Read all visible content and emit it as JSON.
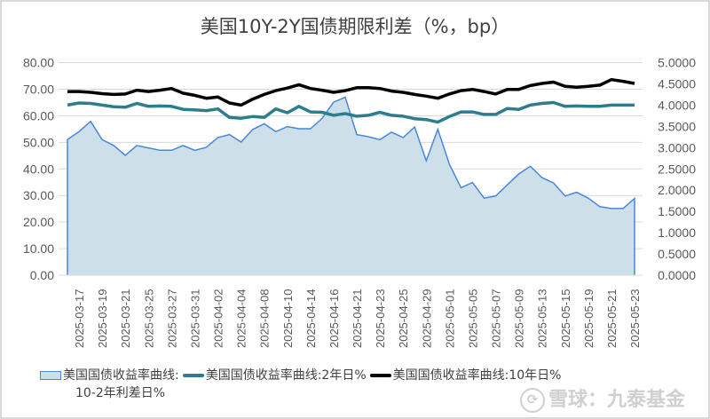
{
  "chart_data": {
    "type": "area+line",
    "title": "美国10Y-2Y国债期限利差（%，bp）",
    "tick_labels": [
      "2025-03-17",
      "2025-03-19",
      "2025-03-21",
      "2025-03-25",
      "2025-03-27",
      "2025-03-31",
      "2025-04-02",
      "2025-04-04",
      "2025-04-08",
      "2025-04-10",
      "2025-04-14",
      "2025-04-16",
      "2025-04-21",
      "2025-04-23",
      "2025-04-25",
      "2025-04-29",
      "2025-05-01",
      "2025-05-05",
      "2025-05-07",
      "2025-05-09",
      "2025-05-13",
      "2025-05-15",
      "2025-05-19",
      "2025-05-21",
      "2025-05-23"
    ],
    "y_left": {
      "min": 0,
      "max": 80,
      "step": 10,
      "ticks": [
        "0.00",
        "10.00",
        "20.00",
        "30.00",
        "40.00",
        "50.00",
        "60.00",
        "70.00",
        "80.00"
      ]
    },
    "y_right": {
      "min": 0,
      "max": 5,
      "step": 0.5,
      "ticks": [
        "0.0000",
        "0.5000",
        "1.0000",
        "1.5000",
        "2.0000",
        "2.5000",
        "3.0000",
        "3.5000",
        "4.0000",
        "4.5000",
        "5.0000"
      ]
    },
    "grid": true,
    "legend_position": "bottom",
    "series": [
      {
        "name": "美国国债收益率曲线:10-2年利差日%",
        "type": "area",
        "axis": "left",
        "color": "#4a86d8",
        "fill": "#cde0ea",
        "values": [
          51.0,
          54.0,
          57.9,
          51.0,
          48.8,
          45.1,
          48.8,
          47.9,
          47.0,
          47.0,
          48.8,
          47.0,
          48.1,
          51.8,
          52.9,
          50.1,
          54.8,
          57.0,
          54.0,
          55.9,
          55.1,
          55.1,
          59.0,
          65.1,
          67.0,
          52.9,
          52.1,
          51.0,
          53.8,
          51.8,
          55.7,
          43.1,
          54.9,
          41.8,
          32.9,
          34.9,
          29.0,
          29.8,
          34.0,
          38.1,
          41.0,
          36.7,
          34.7,
          29.8,
          31.2,
          29.0,
          25.8,
          25.1,
          25.1,
          28.9
        ]
      },
      {
        "name": "美国国债收益率曲线:2年日%",
        "type": "line",
        "axis": "right",
        "color": "#2e7d8f",
        "values": [
          4.0,
          4.05,
          4.04,
          4.0,
          3.96,
          3.95,
          4.04,
          3.97,
          3.98,
          3.97,
          3.9,
          3.89,
          3.87,
          3.91,
          3.71,
          3.69,
          3.73,
          3.71,
          3.91,
          3.82,
          3.97,
          3.84,
          3.83,
          3.76,
          3.8,
          3.74,
          3.76,
          3.83,
          3.76,
          3.74,
          3.68,
          3.66,
          3.6,
          3.73,
          3.84,
          3.84,
          3.78,
          3.78,
          3.92,
          3.9,
          4.0,
          4.04,
          4.06,
          3.97,
          3.98,
          3.97,
          3.97,
          4.0,
          4.0,
          4.0
        ]
      },
      {
        "name": "美国国债收益率曲线:10年日%",
        "type": "line",
        "axis": "right",
        "color": "#000000",
        "values": [
          4.32,
          4.32,
          4.3,
          4.27,
          4.25,
          4.26,
          4.35,
          4.32,
          4.35,
          4.39,
          4.28,
          4.23,
          4.16,
          4.19,
          4.05,
          4.0,
          4.14,
          4.25,
          4.34,
          4.4,
          4.48,
          4.39,
          4.35,
          4.3,
          4.34,
          4.41,
          4.41,
          4.39,
          4.33,
          4.3,
          4.25,
          4.21,
          4.16,
          4.26,
          4.34,
          4.37,
          4.32,
          4.26,
          4.37,
          4.37,
          4.46,
          4.51,
          4.54,
          4.44,
          4.42,
          4.44,
          4.47,
          4.6,
          4.56,
          4.51
        ]
      }
    ]
  },
  "legend": {
    "item1": "美国国债收益率曲线:",
    "item2": "美国国债收益率曲线:2年日%",
    "item3": "美国国债收益率曲线:10年日%",
    "item1_cont": "10-2年利差日%"
  },
  "watermark": "雪球：九泰基金"
}
